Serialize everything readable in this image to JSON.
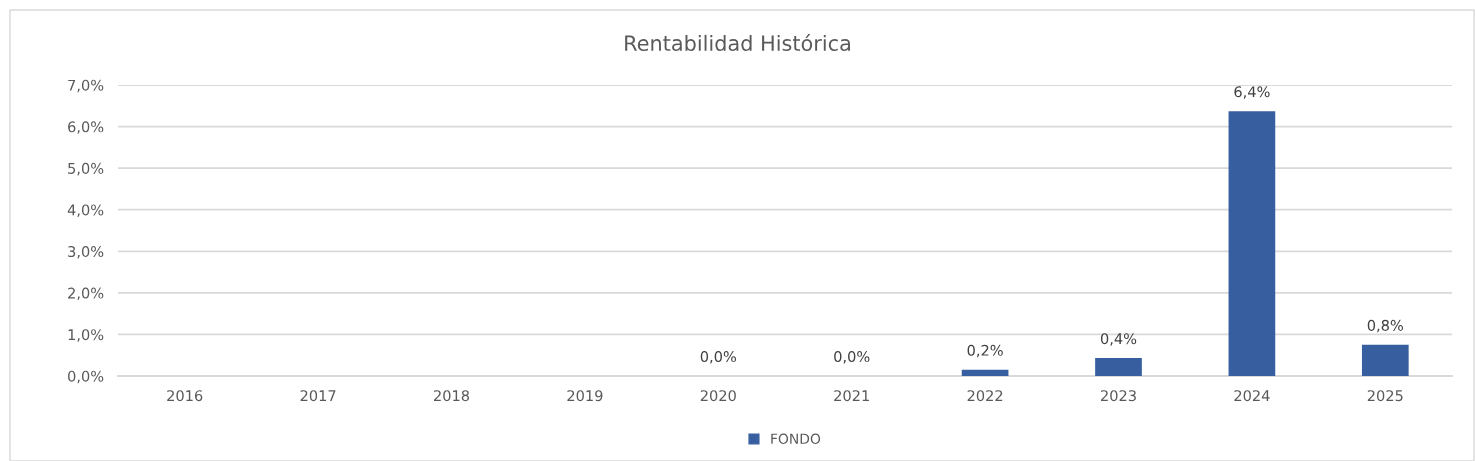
{
  "chart_data": {
    "type": "bar",
    "title": "Rentabilidad Histórica",
    "categories": [
      "2016",
      "2017",
      "2018",
      "2019",
      "2020",
      "2021",
      "2022",
      "2023",
      "2024",
      "2025"
    ],
    "series": [
      {
        "name": "FONDO",
        "color": "#375e9f",
        "values": [
          null,
          null,
          null,
          null,
          0.0,
          0.0,
          0.15,
          0.43,
          6.37,
          0.75
        ],
        "value_labels": [
          null,
          null,
          null,
          null,
          "0,0%",
          "0,0%",
          "0,2%",
          "0,4%",
          "6,4%",
          "0,8%"
        ]
      }
    ],
    "ylim": [
      0,
      7
    ],
    "yticks": [
      {
        "value": 0,
        "label": "0,0%"
      },
      {
        "value": 1,
        "label": "1,0%"
      },
      {
        "value": 2,
        "label": "2,0%"
      },
      {
        "value": 3,
        "label": "3,0%"
      },
      {
        "value": 4,
        "label": "4,0%"
      },
      {
        "value": 5,
        "label": "5,0%"
      },
      {
        "value": 6,
        "label": "6,0%"
      },
      {
        "value": 7,
        "label": "7,0%"
      }
    ],
    "grid": "y",
    "legend": "bottom"
  }
}
